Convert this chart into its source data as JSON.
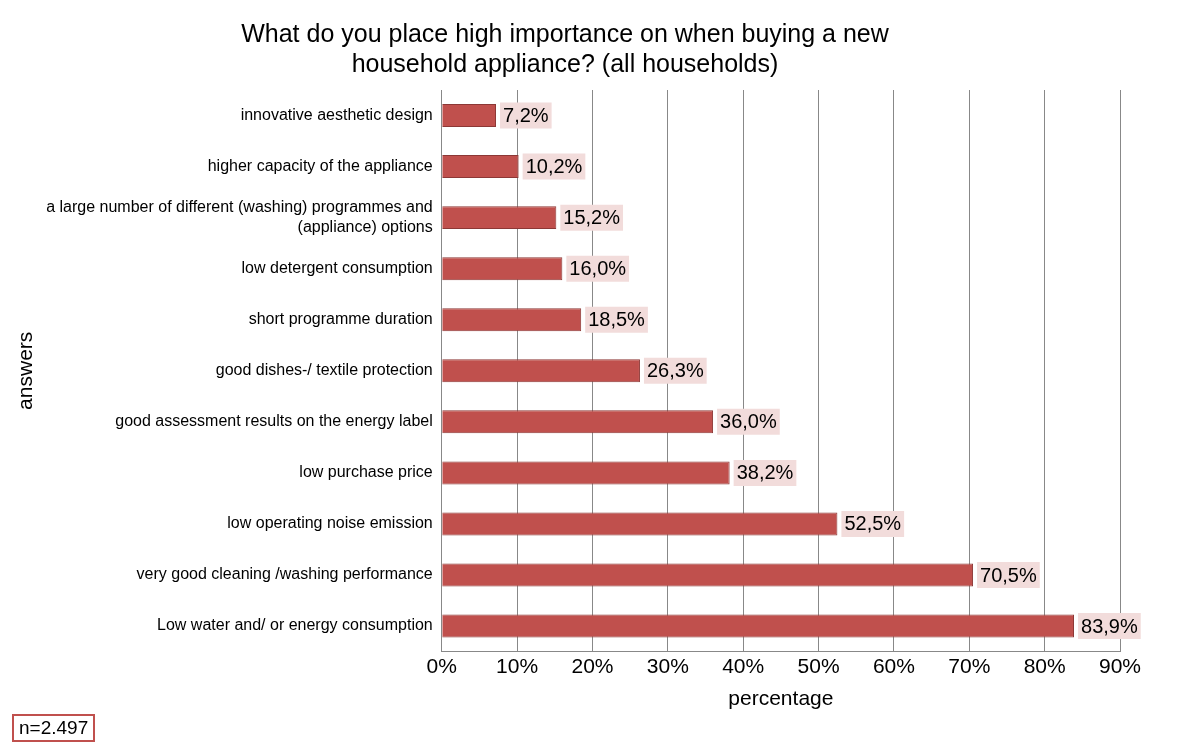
{
  "chart_data": {
    "type": "bar",
    "orientation": "horizontal",
    "title": "What do you place high importance on when buying a new household appliance? (all households)",
    "xlabel": "percentage",
    "ylabel": "answers",
    "categories": [
      "innovative aesthetic design",
      "higher capacity of the appliance",
      "a large number of different (washing) programmes and (appliance) options",
      "low detergent consumption",
      "short programme duration",
      "good dishes-/ textile protection",
      "good assessment results on the energy label",
      "low purchase price",
      "low operating noise emission",
      "very good cleaning /washing performance",
      "Low water and/ or energy consumption"
    ],
    "values": [
      7.2,
      10.2,
      15.2,
      16.0,
      18.5,
      26.3,
      36.0,
      38.2,
      52.5,
      70.5,
      83.9
    ],
    "value_labels": [
      "7,2%",
      "10,2%",
      "15,2%",
      "16,0%",
      "18,5%",
      "26,3%",
      "36,0%",
      "38,2%",
      "52,5%",
      "70,5%",
      "83,9%"
    ],
    "color": "#c0504d",
    "xlim": [
      0,
      90
    ],
    "xticks": [
      {
        "value": 0,
        "label": "0%"
      },
      {
        "value": 10,
        "label": "10%"
      },
      {
        "value": 20,
        "label": "20%"
      },
      {
        "value": 30,
        "label": "30%"
      },
      {
        "value": 40,
        "label": "40%"
      },
      {
        "value": 50,
        "label": "50%"
      },
      {
        "value": 60,
        "label": "60%"
      },
      {
        "value": 70,
        "label": "70%"
      },
      {
        "value": 80,
        "label": "80%"
      },
      {
        "value": 90,
        "label": "90%"
      }
    ],
    "grid": "x",
    "legend": false,
    "annotations": [
      "n=2.497"
    ]
  }
}
